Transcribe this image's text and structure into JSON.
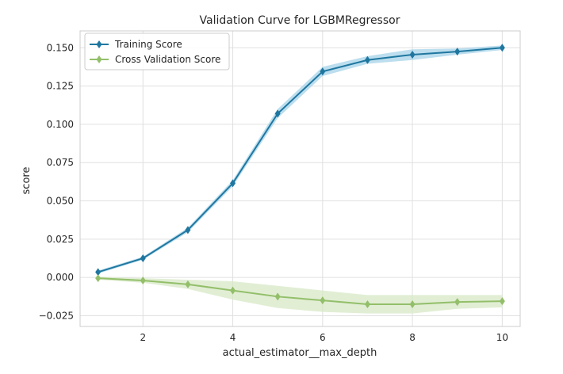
{
  "chart_data": {
    "type": "line",
    "title": "Validation Curve for LGBMRegressor",
    "xlabel": "actual_estimator__max_depth",
    "ylabel": "score",
    "x": [
      1,
      2,
      3,
      4,
      5,
      6,
      7,
      8,
      9,
      10
    ],
    "xlim": [
      0.6,
      10.4
    ],
    "ylim": [
      -0.032,
      0.161
    ],
    "xticks": [
      2,
      4,
      6,
      8,
      10
    ],
    "yticks": [
      -0.025,
      0.0,
      0.025,
      0.05,
      0.075,
      0.1,
      0.125,
      0.15
    ],
    "xtick_labels": [
      "2",
      "4",
      "6",
      "8",
      "10"
    ],
    "ytick_labels": [
      "−0.025",
      "0.000",
      "0.025",
      "0.050",
      "0.075",
      "0.100",
      "0.125",
      "0.150"
    ],
    "grid": true,
    "legend_position": "top-left",
    "series": [
      {
        "name": "Training Score",
        "color": "#1f77a0",
        "band_color": "#a6d3e8",
        "marker": "diamond",
        "values": [
          0.0035,
          0.0125,
          0.031,
          0.0615,
          0.107,
          0.1345,
          0.142,
          0.1455,
          0.1475,
          0.15
        ],
        "band_low": [
          0.0025,
          0.0115,
          0.0295,
          0.0595,
          0.104,
          0.1315,
          0.1395,
          0.142,
          0.1455,
          0.1485
        ],
        "band_high": [
          0.0045,
          0.0135,
          0.0325,
          0.0635,
          0.11,
          0.1375,
          0.1445,
          0.149,
          0.1495,
          0.1515
        ]
      },
      {
        "name": "Cross Validation Score",
        "color": "#93bf6a",
        "band_color": "#d7e8c6",
        "marker": "diamond",
        "values": [
          -0.0005,
          -0.002,
          -0.0045,
          -0.0085,
          -0.0125,
          -0.015,
          -0.0175,
          -0.0175,
          -0.016,
          -0.0155
        ],
        "band_low": [
          -0.0015,
          -0.0035,
          -0.0075,
          -0.0145,
          -0.02,
          -0.0225,
          -0.0235,
          -0.0235,
          -0.0205,
          -0.0195
        ],
        "band_high": [
          0.0005,
          -0.0005,
          -0.0015,
          -0.0025,
          -0.0055,
          -0.0085,
          -0.0115,
          -0.0115,
          -0.0115,
          -0.0115
        ]
      }
    ]
  }
}
